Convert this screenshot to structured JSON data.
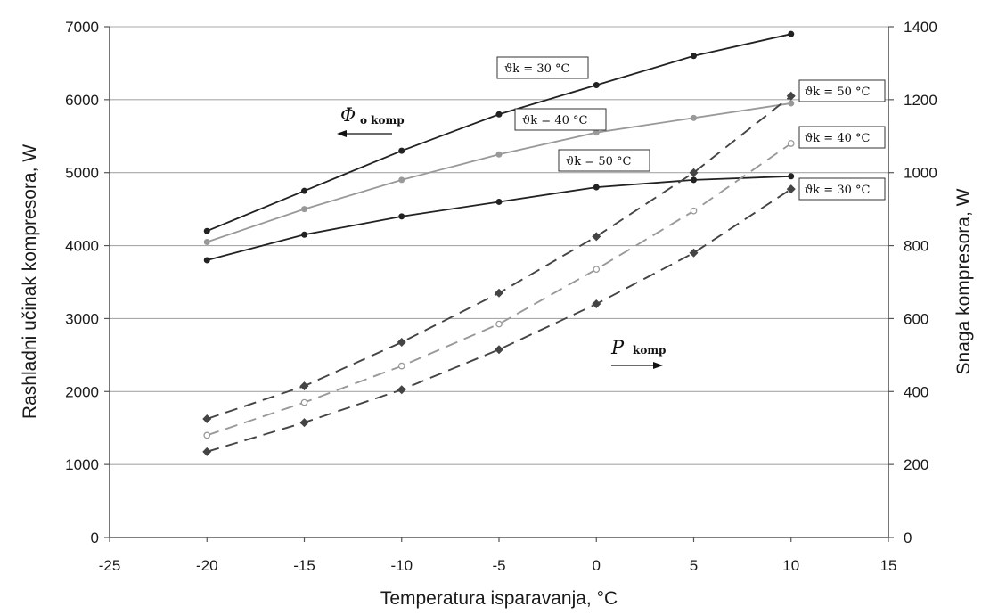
{
  "chart_data": {
    "type": "line",
    "xlabel": "Temperatura isparavanja, °C",
    "ylabel": "Rashladni učinak kompresora, W",
    "y2label": "Snaga kompresora, W",
    "xlim": [
      -25,
      15
    ],
    "ylim": [
      0,
      7000
    ],
    "y2lim": [
      0,
      1400
    ],
    "x_ticks": [
      -25,
      -20,
      -15,
      -10,
      -5,
      0,
      5,
      10,
      15
    ],
    "y_ticks": [
      0,
      1000,
      2000,
      3000,
      4000,
      5000,
      6000,
      7000
    ],
    "y2_ticks": [
      0,
      200,
      400,
      600,
      800,
      1000,
      1200,
      1400
    ],
    "grid": "horizontal",
    "x": [
      -20,
      -15,
      -10,
      -5,
      0,
      5,
      10
    ],
    "cooling_series": [
      {
        "label": "ϑk = 30 °C",
        "axis": "left",
        "color": "#222222",
        "values": [
          4200,
          4750,
          5300,
          5800,
          6200,
          6600,
          6900
        ]
      },
      {
        "label": "ϑk = 40 °C",
        "axis": "left",
        "color": "#999999",
        "values": [
          4050,
          4500,
          4900,
          5250,
          5550,
          5750,
          5950
        ]
      },
      {
        "label": "ϑk = 50 °C",
        "axis": "left",
        "color": "#222222",
        "values": [
          3800,
          4150,
          4400,
          4600,
          4800,
          4900,
          4950
        ]
      }
    ],
    "power_series": [
      {
        "label": "ϑk = 50 °C",
        "axis": "right",
        "color": "#444444",
        "values": [
          325,
          415,
          535,
          670,
          825,
          1000,
          1210
        ]
      },
      {
        "label": "ϑk = 40 °C",
        "axis": "right",
        "color": "#999999",
        "values": [
          280,
          370,
          470,
          585,
          735,
          895,
          1080
        ]
      },
      {
        "label": "ϑk = 30 °C",
        "axis": "right",
        "color": "#444444",
        "values": [
          235,
          315,
          405,
          515,
          640,
          780,
          955
        ]
      }
    ],
    "annotations": {
      "phi_main": "Φ",
      "phi_sub": "o komp",
      "p_main": "P",
      "p_sub": "komp"
    }
  }
}
